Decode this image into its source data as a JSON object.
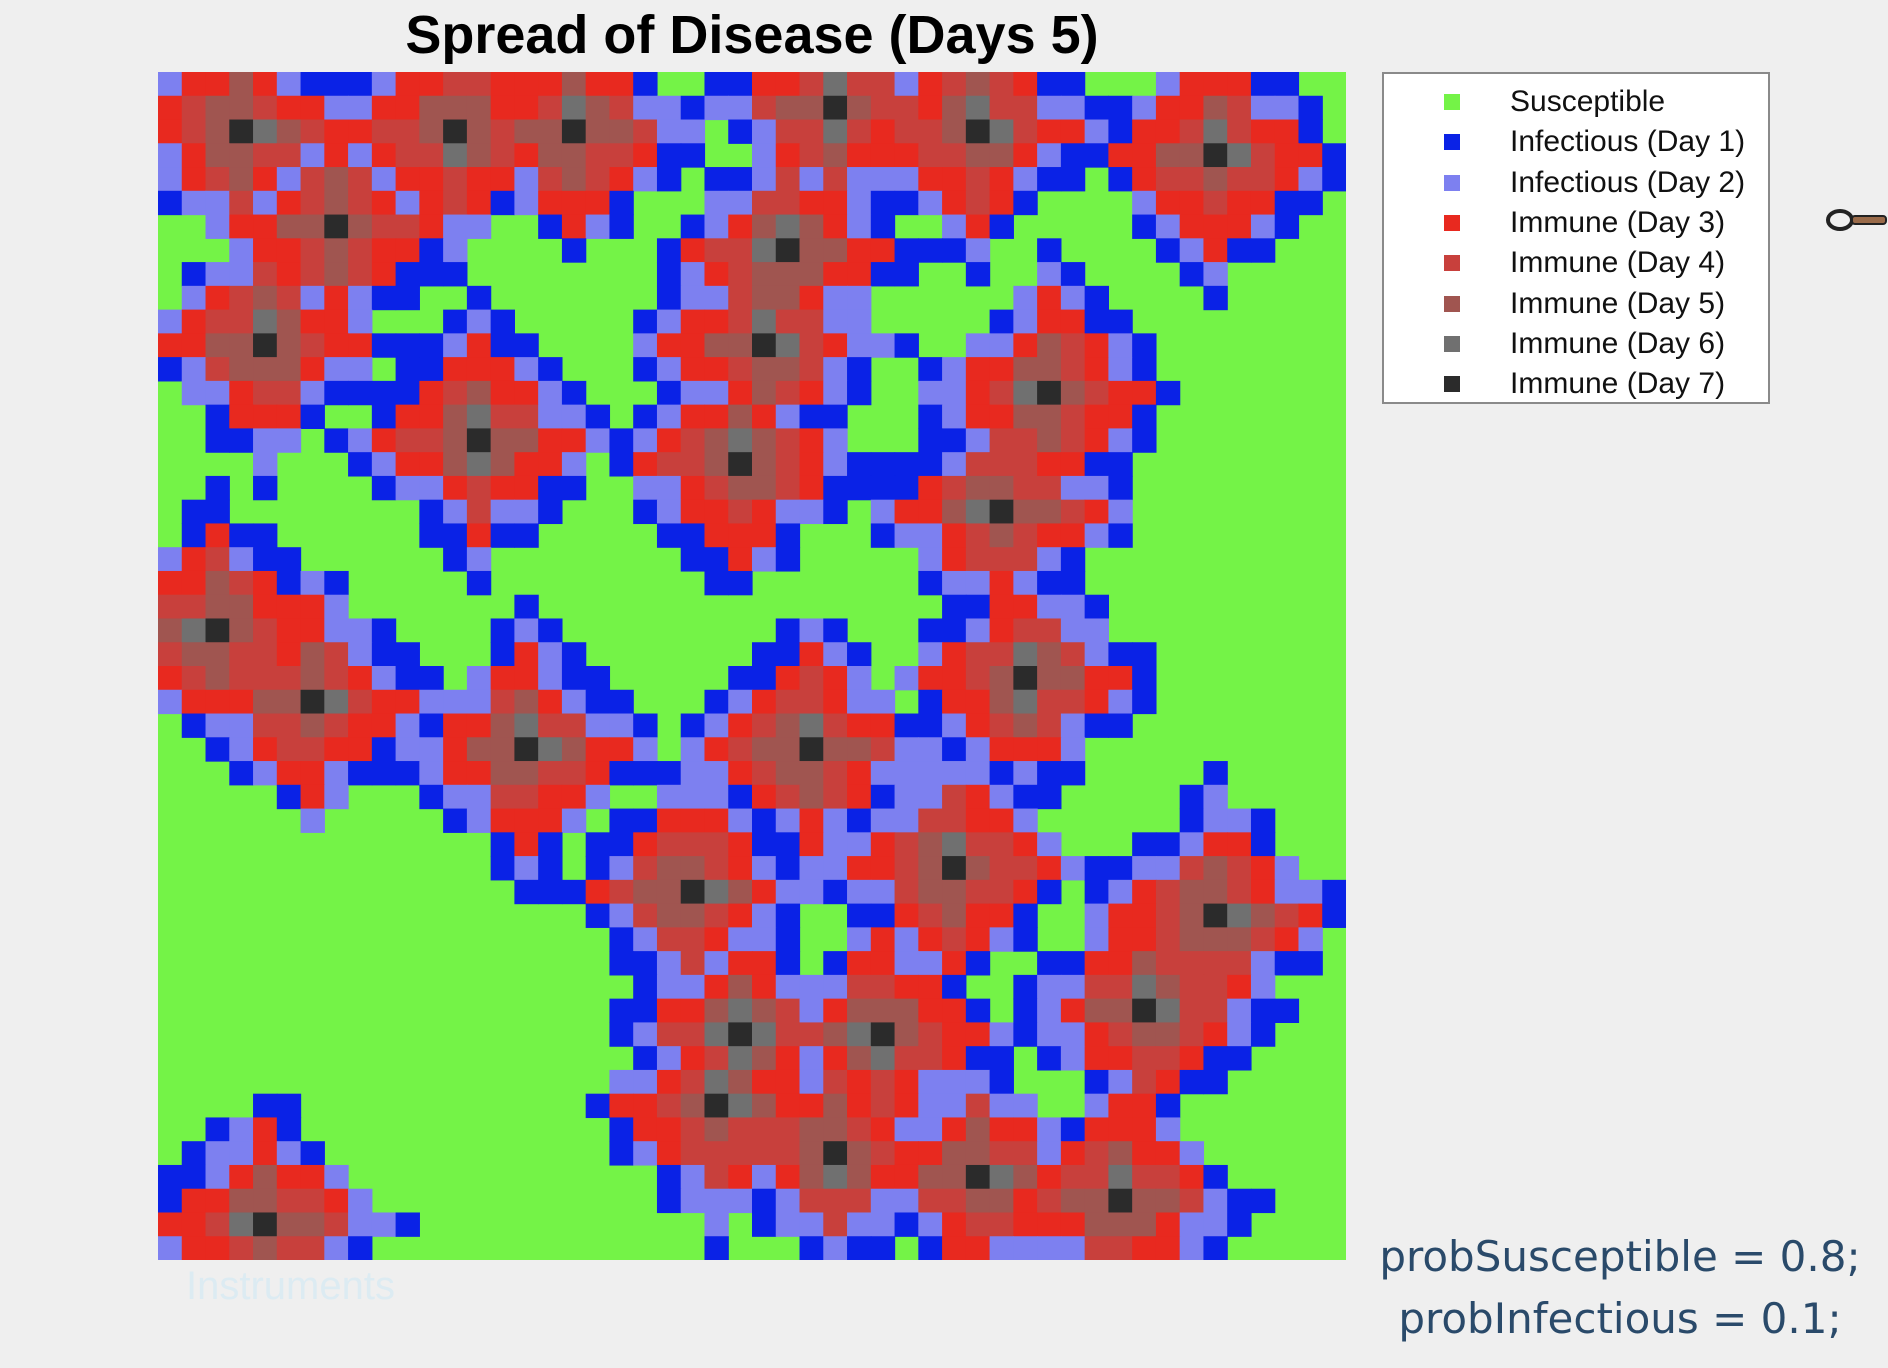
{
  "chart_data": {
    "type": "heatmap",
    "title": "Spread of Disease (Days 5)",
    "xlabel": "",
    "ylabel": "",
    "grid": false,
    "legend_placement": "outside-top-right",
    "grid_size": [
      50,
      50
    ],
    "states": [
      {
        "code": "S",
        "name": "Susceptible",
        "color": "#74f347"
      },
      {
        "code": "I1",
        "name": "Infectious (Day 1)",
        "color": "#0a22e6"
      },
      {
        "code": "I2",
        "name": "Infectious (Day 2)",
        "color": "#7d80f0"
      },
      {
        "code": "R3",
        "name": "Immune (Day 3)",
        "color": "#e8291f"
      },
      {
        "code": "R4",
        "name": "Immune (Day 4)",
        "color": "#c8403c"
      },
      {
        "code": "R5",
        "name": "Immune (Day 5)",
        "color": "#a05550"
      },
      {
        "code": "R6",
        "name": "Immune (Day 6)",
        "color": "#707070"
      },
      {
        "code": "R7",
        "name": "Immune (Day 7)",
        "color": "#2b2b2b"
      }
    ],
    "approx_infection_seeds": [
      {
        "row": 2,
        "col": 3
      },
      {
        "row": 2,
        "col": 12
      },
      {
        "row": 2,
        "col": 17
      },
      {
        "row": 1,
        "col": 28
      },
      {
        "row": 2,
        "col": 34
      },
      {
        "row": 3,
        "col": 44
      },
      {
        "row": 6,
        "col": 7
      },
      {
        "row": 7,
        "col": 26
      },
      {
        "row": 11,
        "col": 4
      },
      {
        "row": 11,
        "col": 25
      },
      {
        "row": 13,
        "col": 37
      },
      {
        "row": 15,
        "col": 13
      },
      {
        "row": 16,
        "col": 24
      },
      {
        "row": 18,
        "col": 35
      },
      {
        "row": 23,
        "col": 2
      },
      {
        "row": 25,
        "col": 36
      },
      {
        "row": 26,
        "col": 6
      },
      {
        "row": 28,
        "col": 15
      },
      {
        "row": 28,
        "col": 27
      },
      {
        "row": 33,
        "col": 33
      },
      {
        "row": 34,
        "col": 22
      },
      {
        "row": 35,
        "col": 44
      },
      {
        "row": 39,
        "col": 41
      },
      {
        "row": 40,
        "col": 30
      },
      {
        "row": 40,
        "col": 24
      },
      {
        "row": 43,
        "col": 23
      },
      {
        "row": 45,
        "col": 28
      },
      {
        "row": 46,
        "col": 34
      },
      {
        "row": 47,
        "col": 40
      },
      {
        "row": 48,
        "col": 4
      }
    ]
  },
  "annotations": {
    "watermark": "Instruments",
    "param_line_1": "probSusceptible = 0.8;",
    "param_line_2": "probInfectious = 0.1;"
  }
}
